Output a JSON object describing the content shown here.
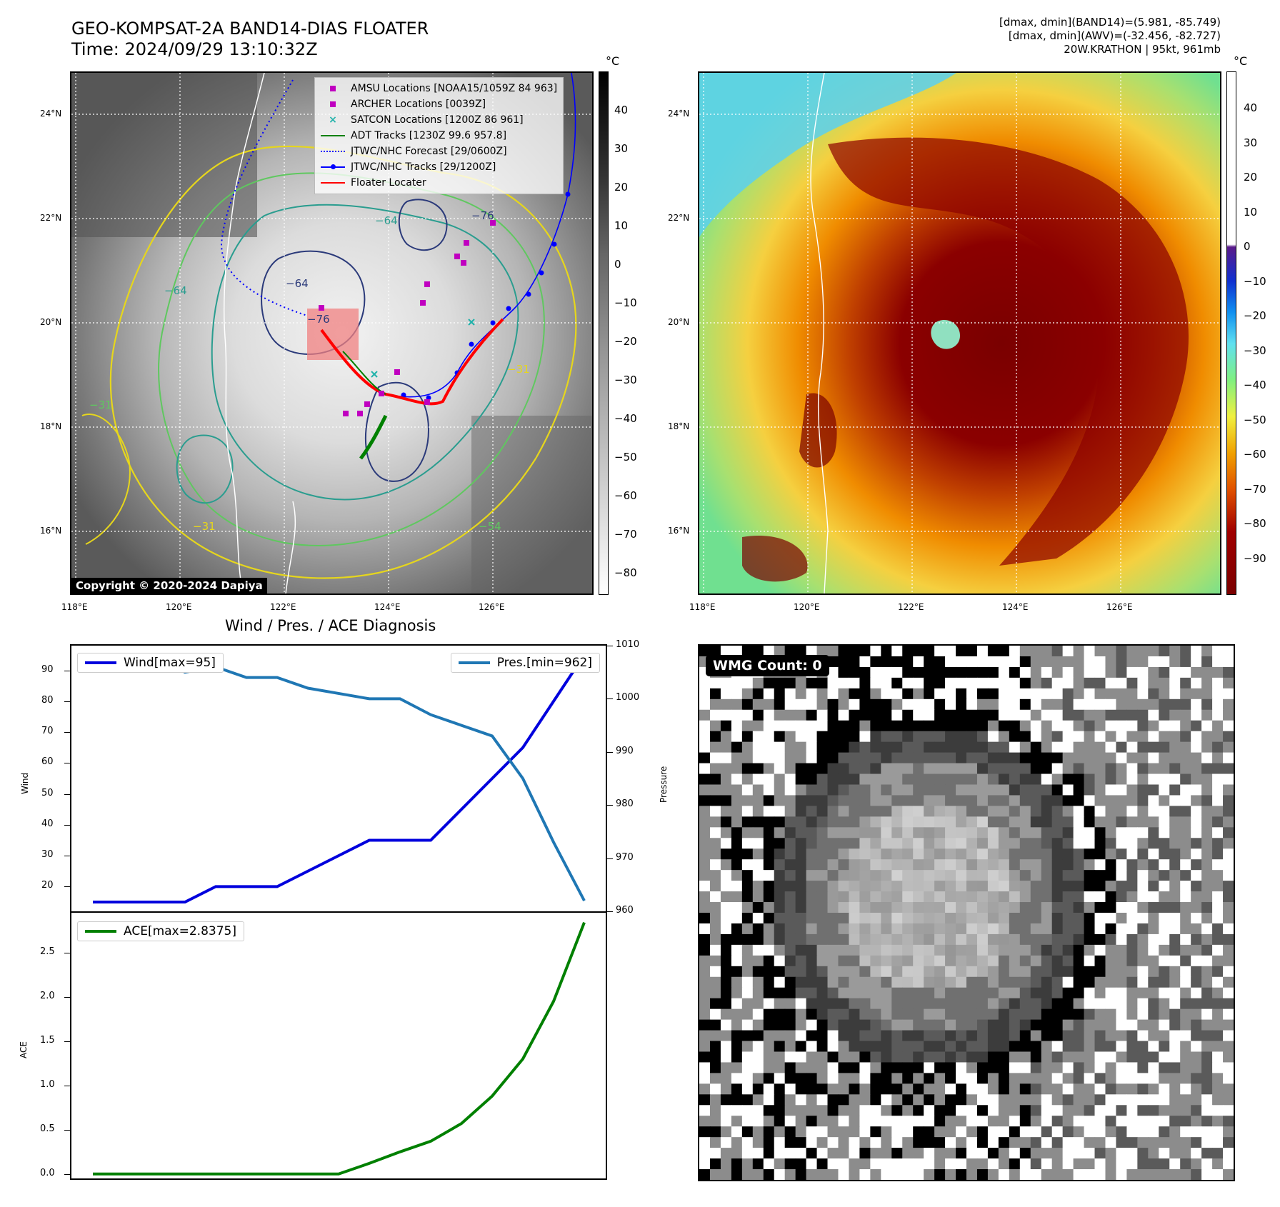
{
  "header": {
    "title_line1": "GEO-KOMPSAT-2A BAND14-DIAS FLOATER",
    "title_line2": "Time: 2024/09/29 13:10:32Z",
    "info_line1": "[dmax, dmin](BAND14)=(5.981, -85.749)",
    "info_line2": "[dmax, dmin](AWV)=(-32.456, -82.727)",
    "info_line3": "20W.KRATHON | 95kt, 961mb"
  },
  "maps": {
    "lat_labels": [
      "24°N",
      "22°N",
      "20°N",
      "18°N",
      "16°N"
    ],
    "lon_labels": [
      "118°E",
      "120°E",
      "122°E",
      "124°E",
      "126°E"
    ],
    "copyright": "Copyright © 2020-2024 Dapiya",
    "cbar_unit": "°C",
    "cbar1_ticks": [
      "40",
      "30",
      "20",
      "10",
      "0",
      "−10",
      "−20",
      "−30",
      "−40",
      "−50",
      "−60",
      "−70",
      "−80"
    ],
    "cbar2_ticks": [
      "40",
      "30",
      "20",
      "10",
      "0",
      "−10",
      "−20",
      "−30",
      "−40",
      "−50",
      "−60",
      "−70",
      "−80",
      "−90"
    ],
    "contour_labels": [
      "−64",
      "−64",
      "−76",
      "−76",
      "−64",
      "−31",
      "−31",
      "−54",
      "−31"
    ],
    "legend": {
      "amsu": "AMSU Locations [NOAA15/1059Z 84 963]",
      "archer": "ARCHER Locations [0039Z]",
      "satcon": "SATCON Locations [1200Z 86 961]",
      "adt": "ADT Tracks [1230Z 99.6 957.8]",
      "forecast": "JTWC/NHC Forecast [29/0600Z]",
      "tracks": "JTWC/NHC Tracks [29/1200Z]",
      "floater": "Floater Locater"
    },
    "colors": {
      "amsu": "#c000c0",
      "archer": "#c000c0",
      "satcon": "#20b2aa",
      "adt": "#008000",
      "forecast": "#0000ff",
      "tracks": "#0000ff",
      "floater": "#ff0000"
    }
  },
  "diagnosis": {
    "subtitle": "Wind / Pres. / ACE Diagnosis",
    "wind_legend": "Wind[max=95]",
    "pres_legend": "Pres.[min=962]",
    "ace_legend": "ACE[max=2.8375]",
    "wind_axis_label": "Wind",
    "pres_axis_label": "Pressure",
    "ace_axis_label": "ACE",
    "wmg": "WMG Count: 0"
  },
  "chart_data": [
    {
      "type": "line",
      "title": "Wind / Pres. / ACE Diagnosis",
      "x": [
        0,
        1,
        2,
        3,
        4,
        5,
        6,
        7,
        8,
        9,
        10,
        11,
        12,
        13,
        14,
        15,
        16
      ],
      "series": [
        {
          "name": "Wind",
          "axis": "left",
          "color": "#0000dd",
          "values": [
            15,
            15,
            15,
            15,
            20,
            20,
            20,
            25,
            30,
            35,
            35,
            35,
            45,
            55,
            65,
            80,
            95
          ]
        },
        {
          "name": "Pressure",
          "axis": "right",
          "color": "#1f77b4",
          "values": [
            1008,
            1008,
            1008,
            1005,
            1006,
            1004,
            1004,
            1002,
            1001,
            1000,
            1000,
            997,
            995,
            993,
            985,
            973,
            962
          ]
        }
      ],
      "ylim_left": [
        12,
        98
      ],
      "yticks_left": [
        20,
        30,
        40,
        50,
        60,
        70,
        80,
        90
      ],
      "ylim_right": [
        960,
        1010
      ],
      "yticks_right": [
        960,
        970,
        980,
        990,
        1000,
        1010
      ],
      "ylabel_left": "Wind",
      "ylabel_right": "Pressure"
    },
    {
      "type": "line",
      "x": [
        0,
        1,
        2,
        3,
        4,
        5,
        6,
        7,
        8,
        9,
        10,
        11,
        12,
        13,
        14,
        15,
        16
      ],
      "series": [
        {
          "name": "ACE",
          "color": "#008000",
          "values": [
            0,
            0,
            0,
            0,
            0,
            0,
            0,
            0,
            0,
            0.12,
            0.25,
            0.37,
            0.57,
            0.88,
            1.3,
            1.95,
            2.84
          ]
        }
      ],
      "ylim": [
        -0.05,
        2.95
      ],
      "yticks": [
        0.0,
        0.5,
        1.0,
        1.5,
        2.0,
        2.5
      ],
      "ylabel": "ACE"
    }
  ]
}
